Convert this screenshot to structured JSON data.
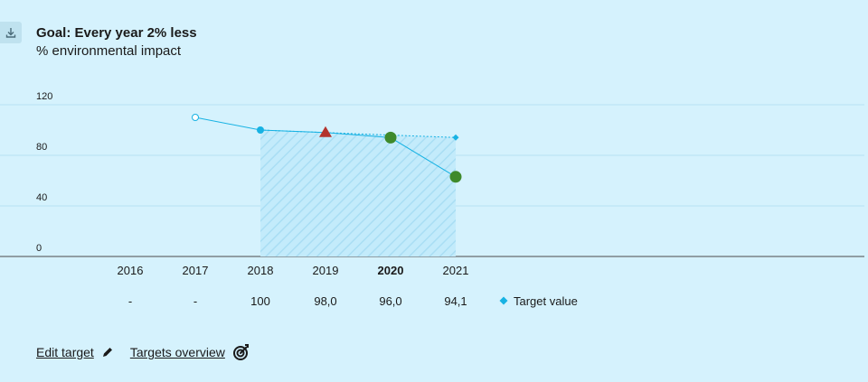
{
  "header": {
    "title": "Goal: Every year 2% less",
    "subtitle": "% environmental impact"
  },
  "chart_data": {
    "type": "line",
    "ylim": [
      0,
      120
    ],
    "yticks": [
      "0",
      "40",
      "80",
      "120"
    ],
    "categories": [
      "2016",
      "2017",
      "2018",
      "2019",
      "2020",
      "2021"
    ],
    "highlight_category": "2020",
    "actual_series": [
      {
        "x": "2017",
        "y": 110,
        "marker": "hollow-circle"
      },
      {
        "x": "2018",
        "y": 100,
        "marker": "small-dot"
      },
      {
        "x": "2019",
        "y": 98,
        "marker": "red-triangle"
      },
      {
        "x": "2020",
        "y": 94,
        "marker": "green-circle"
      },
      {
        "x": "2021",
        "y": 63,
        "marker": "green-circle"
      }
    ],
    "target_series": {
      "name": "Target value",
      "points": [
        {
          "x": "2018",
          "y": 100
        },
        {
          "x": "2019",
          "y": 98
        },
        {
          "x": "2020",
          "y": 96
        },
        {
          "x": "2021",
          "y": 94.1
        }
      ]
    },
    "target_row": [
      "-",
      "-",
      "100",
      "98,0",
      "96,0",
      "94,1"
    ],
    "target_band": {
      "from": "2018",
      "to": "2021"
    },
    "colors": {
      "line": "#17b2e3",
      "grid": "#b8e3f2",
      "triangle": "#b3342e",
      "green": "#3f8a2b",
      "band": "#b4e5f8"
    }
  },
  "legend": {
    "label": "Target value"
  },
  "links": {
    "edit_target": "Edit target",
    "targets_overview": "Targets overview"
  }
}
